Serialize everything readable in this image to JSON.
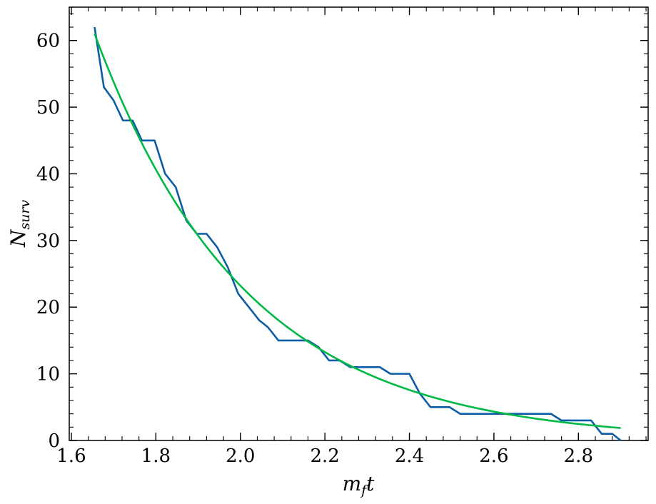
{
  "chart_data": {
    "type": "line",
    "xlabel": {
      "main": "m",
      "sub": "f",
      "tail": "t"
    },
    "ylabel": {
      "main": "N",
      "sub": "surv"
    },
    "xlim": [
      1.595,
      2.965
    ],
    "ylim": [
      0,
      65
    ],
    "x_ticks": [
      1.6,
      1.8,
      2.0,
      2.2,
      2.4,
      2.6,
      2.8
    ],
    "x_tick_labels": [
      "1.6",
      "1.8",
      "2.0",
      "2.2",
      "2.4",
      "2.6",
      "2.8"
    ],
    "x_minor_step": 0.04,
    "y_ticks": [
      0,
      10,
      20,
      30,
      40,
      50,
      60
    ],
    "y_tick_labels": [
      "0",
      "10",
      "20",
      "30",
      "40",
      "50",
      "60"
    ],
    "y_minor_step": 2,
    "grid": false,
    "series": [
      {
        "color": "#0c5da5",
        "x": [
          1.655,
          1.677,
          1.7,
          1.722,
          1.745,
          1.767,
          1.797,
          1.822,
          1.847,
          1.872,
          1.897,
          1.92,
          1.945,
          1.97,
          1.995,
          2.02,
          2.045,
          2.065,
          2.09,
          2.115,
          2.135,
          2.16,
          2.185,
          2.21,
          2.235,
          2.26,
          2.285,
          2.305,
          2.33,
          2.355,
          2.38,
          2.4,
          2.425,
          2.45,
          2.47,
          2.495,
          2.52,
          2.545,
          2.57,
          2.595,
          2.62,
          2.645,
          2.67,
          2.695,
          2.715,
          2.735,
          2.76,
          2.785,
          2.81,
          2.83,
          2.855,
          2.88,
          2.9
        ],
        "y": [
          62,
          53,
          51,
          48,
          48,
          45,
          45,
          40,
          38,
          33,
          31,
          31,
          29,
          26,
          22,
          20,
          18,
          17,
          15,
          15,
          15,
          15,
          14,
          12,
          12,
          11,
          11,
          11,
          11,
          10,
          10,
          10,
          7,
          5,
          5,
          5,
          4,
          4,
          4,
          4,
          4,
          4,
          4,
          4,
          4,
          4,
          3,
          3,
          3,
          3,
          1,
          1,
          0
        ]
      },
      {
        "color": "#00b945",
        "fit": {
          "A": 61,
          "t0": 1.655,
          "k": 2.8,
          "x_start": 1.655,
          "x_end": 2.9
        }
      }
    ]
  }
}
